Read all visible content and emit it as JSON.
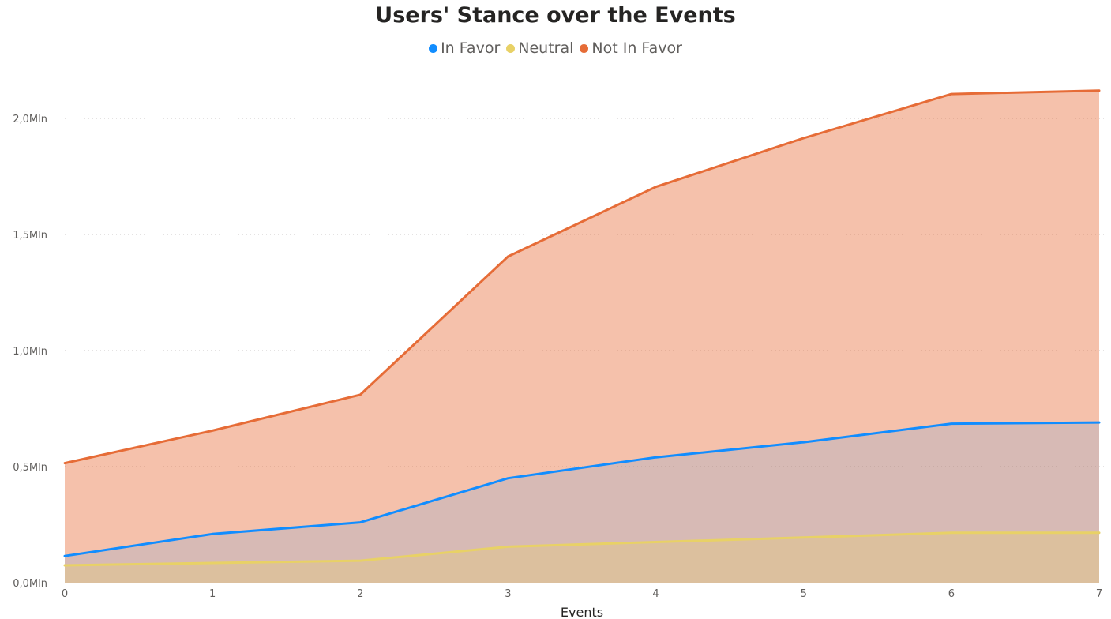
{
  "chart_data": {
    "type": "area",
    "title": "Users' Stance over the Events",
    "xlabel": "Events",
    "ylabel": "",
    "x": [
      0,
      1,
      2,
      3,
      4,
      5,
      6,
      7
    ],
    "ylim": [
      0,
      2200000
    ],
    "y_ticks": [
      {
        "value": 0,
        "label": "0,0Mln"
      },
      {
        "value": 500000,
        "label": "0,5Mln"
      },
      {
        "value": 1000000,
        "label": "1,0Mln"
      },
      {
        "value": 1500000,
        "label": "1,5Mln"
      },
      {
        "value": 2000000,
        "label": "2,0Mln"
      }
    ],
    "grid": "horizontal-dotted",
    "legend_position": "top-center",
    "series": [
      {
        "name": "In Favor",
        "color": "#118DFF",
        "values": [
          115000,
          210000,
          260000,
          450000,
          540000,
          605000,
          685000,
          690000
        ]
      },
      {
        "name": "Neutral",
        "color": "#E8D166",
        "values": [
          75000,
          85000,
          95000,
          155000,
          175000,
          195000,
          215000,
          215000
        ]
      },
      {
        "name": "Not In Favor",
        "color": "#E66C37",
        "values": [
          515000,
          655000,
          810000,
          1405000,
          1705000,
          1915000,
          2105000,
          2120000
        ]
      }
    ]
  }
}
